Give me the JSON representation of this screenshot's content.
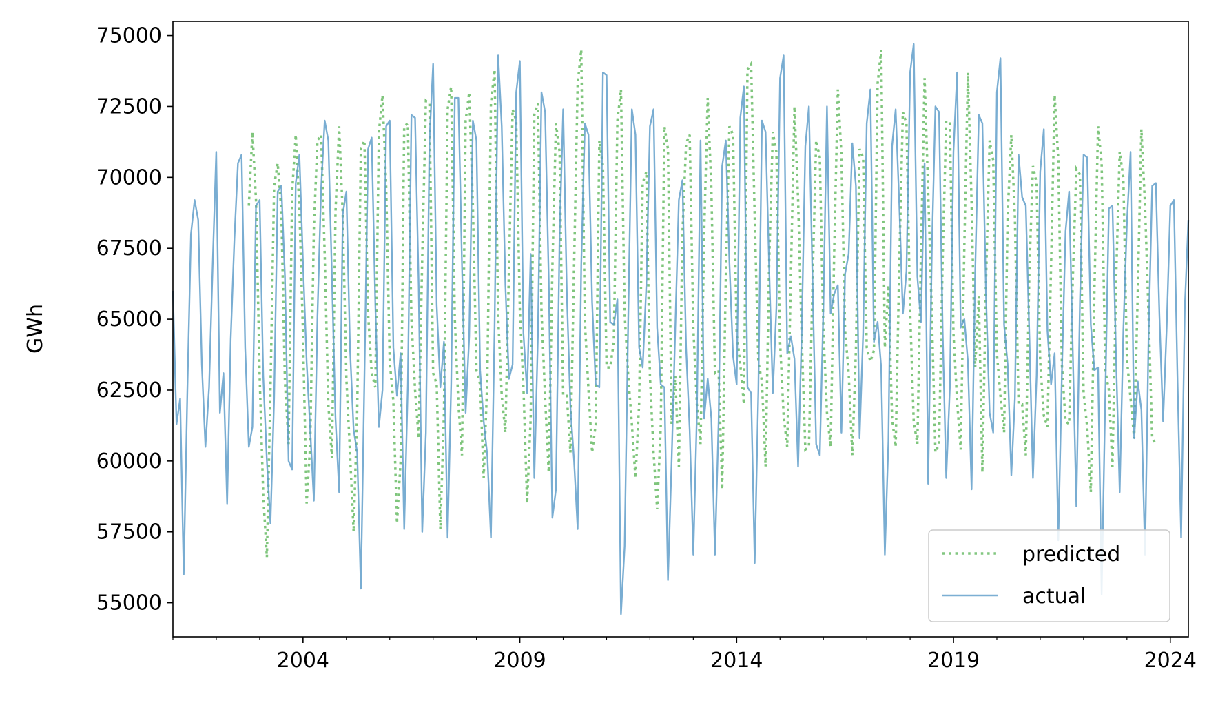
{
  "chart_data": {
    "type": "line",
    "title": "",
    "xlabel": "",
    "ylabel": "GWh",
    "xlim": [
      "2001-01-01",
      "2024-06-01"
    ],
    "ylim": [
      53800,
      75500
    ],
    "grid": false,
    "legend_position": "bottom-right",
    "x_ticks": [
      "2004",
      "2009",
      "2014",
      "2019",
      "2024"
    ],
    "y_ticks": [
      "55000",
      "57500",
      "60000",
      "62500",
      "65000",
      "67500",
      "70000",
      "72500",
      "75000"
    ],
    "x_start": "2001-01",
    "x_step": "1 month",
    "series": [
      {
        "name": "predicted",
        "color": "#4daf4a",
        "style": "dotted",
        "start": "2002-10",
        "values": [
          69000,
          71600,
          69200,
          63000,
          58800,
          56600,
          62500,
          69700,
          70500,
          68800,
          62800,
          60600,
          69500,
          71500,
          68900,
          64500,
          58500,
          60600,
          68200,
          71300,
          71500,
          67300,
          62000,
          60100,
          68800,
          71800,
          68700,
          62900,
          60300,
          57500,
          61800,
          71000,
          71300,
          65200,
          63100,
          62600,
          71600,
          72900,
          69700,
          63500,
          62100,
          57800,
          60000,
          71800,
          71900,
          65000,
          62500,
          60800,
          67200,
          72700,
          72600,
          63100,
          62700,
          57600,
          61700,
          72400,
          73200,
          65000,
          62000,
          60200,
          72000,
          73000,
          69000,
          63200,
          62700,
          59400,
          62900,
          72600,
          73800,
          65100,
          62300,
          61000,
          66800,
          72400,
          72000,
          65300,
          62600,
          58500,
          61500,
          72200,
          72600,
          65300,
          62200,
          59600,
          66800,
          71900,
          70900,
          62300,
          62300,
          60300,
          66900,
          73300,
          74500,
          64900,
          62500,
          60300,
          61300,
          71300,
          70400,
          63300,
          63300,
          64200,
          72000,
          73100,
          65200,
          63000,
          61300,
          59400,
          62000,
          69800,
          70200,
          63000,
          60300,
          58300,
          61200,
          71800,
          71000,
          61300,
          63000,
          59800,
          68000,
          71200,
          71500,
          64700,
          62000,
          60600,
          68000,
          72800,
          69600,
          63100,
          63200,
          59000,
          66500,
          71800,
          71500,
          64500,
          63400,
          62000,
          73800,
          74000,
          68600,
          63500,
          62800,
          59800,
          67000,
          71600,
          70900,
          64200,
          61600,
          60500,
          66500,
          72500,
          69200,
          64400,
          60400,
          60500,
          66300,
          71300,
          70700,
          64600,
          61700,
          60500,
          67400,
          73100,
          70800,
          64600,
          63100,
          60200,
          63900,
          71000,
          70700,
          64000,
          63500,
          63900,
          73300,
          74500,
          64000,
          66200,
          61500,
          60500,
          67000,
          72300,
          71900,
          65300,
          61400,
          60600,
          67200,
          73500,
          69500,
          65200,
          60300,
          60600,
          67100,
          72000,
          71900,
          64500,
          62100,
          60400,
          67600,
          73700,
          69100,
          63300,
          65800,
          59600,
          66300,
          71300,
          70600,
          63800,
          62300,
          61000,
          68700,
          71500,
          68600,
          62000,
          62000,
          60200,
          66700,
          70400,
          69800,
          63500,
          61600,
          61200,
          66900,
          72900,
          70600,
          63400,
          61400,
          61300,
          66300,
          70300,
          70100,
          62400,
          61200,
          58900,
          66000,
          71800,
          70500,
          63200,
          62500,
          59800,
          66400,
          70900,
          70000,
          63600,
          62200,
          60800,
          66000,
          71700,
          69000,
          65100,
          60800,
          60600
        ]
      },
      {
        "name": "actual",
        "color": "#5b9bc8",
        "style": "solid",
        "start": "2001-01",
        "values": [
          66000,
          61300,
          62200,
          56000,
          62500,
          68000,
          69200,
          68500,
          63400,
          60500,
          62600,
          66900,
          70900,
          61700,
          63100,
          58500,
          64300,
          67800,
          70500,
          70800,
          64000,
          60500,
          61200,
          69000,
          69200,
          63000,
          60000,
          57800,
          62200,
          69500,
          69700,
          66500,
          60000,
          59700,
          69800,
          70800,
          67000,
          63500,
          61100,
          58600,
          65100,
          69600,
          72000,
          71300,
          66500,
          61500,
          58900,
          68700,
          69500,
          64000,
          61100,
          60300,
          55500,
          63000,
          71000,
          71400,
          65500,
          61200,
          62500,
          71800,
          72000,
          64000,
          62300,
          63800,
          57600,
          62700,
          72200,
          72100,
          66200,
          57500,
          61000,
          71300,
          74000,
          65500,
          62600,
          64200,
          57300,
          62700,
          72800,
          72800,
          66900,
          61700,
          64400,
          72000,
          71300,
          63200,
          61400,
          60200,
          57300,
          64700,
          74300,
          71800,
          66200,
          62900,
          63400,
          73000,
          74100,
          64500,
          62400,
          67300,
          59400,
          64400,
          73000,
          72300,
          66400,
          58000,
          59000,
          68000,
          72400,
          65900,
          61900,
          60000,
          57600,
          66900,
          71900,
          71500,
          65600,
          62700,
          62600,
          73700,
          73600,
          64900,
          64800,
          65700,
          54600,
          57000,
          65000,
          72400,
          71500,
          64000,
          63300,
          66200,
          71800,
          72400,
          64700,
          62700,
          62600,
          55800,
          60000,
          64600,
          69200,
          69900,
          64000,
          61100,
          56700,
          61700,
          71300,
          61500,
          62900,
          61500,
          56700,
          61400,
          70400,
          71300,
          67000,
          63700,
          62700,
          72100,
          73200,
          62600,
          62400,
          56400,
          62500,
          72000,
          71600,
          66800,
          62400,
          65400,
          73500,
          74300,
          63800,
          64400,
          63600,
          59800,
          64500,
          71100,
          72500,
          66300,
          60600,
          60200,
          65400,
          72500,
          65200,
          65900,
          66200,
          61000,
          66600,
          67300,
          71200,
          69700,
          60800,
          64500,
          71900,
          73100,
          64200,
          64900,
          63300,
          56700,
          60700,
          71100,
          72400,
          69000,
          65200,
          66700,
          73700,
          74700,
          66500,
          64900,
          70500,
          59200,
          67400,
          72500,
          72300,
          64600,
          59400,
          62600,
          70900,
          73700,
          64700,
          65000,
          63500,
          59000,
          66600,
          72200,
          71900,
          65900,
          61700,
          61000,
          73000,
          74200,
          64800,
          63400,
          59500,
          62200,
          70800,
          69300,
          69000,
          64400,
          59400,
          63000,
          70200,
          71700,
          64600,
          62700,
          63800,
          57200,
          63100,
          68100,
          69500,
          64000,
          58400,
          65600,
          70800,
          70700,
          64800,
          63200,
          63300,
          55300,
          62300,
          68900,
          69000,
          63600,
          58900,
          64600,
          68400,
          70900,
          60800,
          62800,
          61800,
          56700,
          64500,
          69700,
          69800,
          65100,
          61400,
          64700,
          69000,
          69200,
          62800,
          57300,
          65400,
          68500
        ]
      }
    ]
  }
}
